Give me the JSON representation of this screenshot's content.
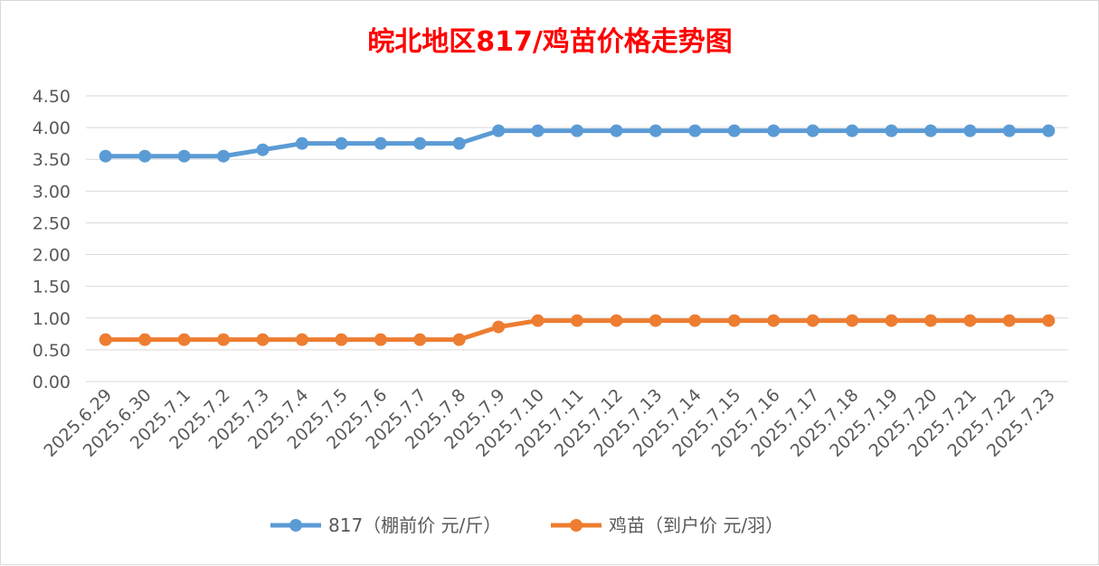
{
  "chart_data": {
    "type": "line",
    "title": "皖北地区817/鸡苗价格走势图",
    "title_color": "#ff0000",
    "xlabel": "",
    "ylabel": "",
    "categories": [
      "2025.6.29",
      "2025.6.30",
      "2025.7.1",
      "2025.7.2",
      "2025.7.3",
      "2025.7.4",
      "2025.7.5",
      "2025.7.6",
      "2025.7.7",
      "2025.7.8",
      "2025.7.9",
      "2025.7.10",
      "2025.7.11",
      "2025.7.12",
      "2025.7.13",
      "2025.7.14",
      "2025.7.15",
      "2025.7.16",
      "2025.7.17",
      "2025.7.18",
      "2025.7.19",
      "2025.7.20",
      "2025.7.21",
      "2025.7.22",
      "2025.7.23"
    ],
    "y_ticks": [
      "0.00",
      "0.50",
      "1.00",
      "1.50",
      "2.00",
      "2.50",
      "3.00",
      "3.50",
      "4.00",
      "4.50"
    ],
    "ylim": [
      0,
      4.5
    ],
    "grid": true,
    "legend_position": "bottom",
    "series": [
      {
        "name": "817（棚前价 元/斤）",
        "color": "#5b9bd5",
        "values": [
          3.55,
          3.55,
          3.55,
          3.55,
          3.65,
          3.75,
          3.75,
          3.75,
          3.75,
          3.75,
          3.95,
          3.95,
          3.95,
          3.95,
          3.95,
          3.95,
          3.95,
          3.95,
          3.95,
          3.95,
          3.95,
          3.95,
          3.95,
          3.95,
          3.95
        ]
      },
      {
        "name": "鸡苗（到户价 元/羽）",
        "color": "#ed7d31",
        "values": [
          0.66,
          0.66,
          0.66,
          0.66,
          0.66,
          0.66,
          0.66,
          0.66,
          0.66,
          0.66,
          0.86,
          0.96,
          0.96,
          0.96,
          0.96,
          0.96,
          0.96,
          0.96,
          0.96,
          0.96,
          0.96,
          0.96,
          0.96,
          0.96,
          0.96
        ]
      }
    ]
  }
}
